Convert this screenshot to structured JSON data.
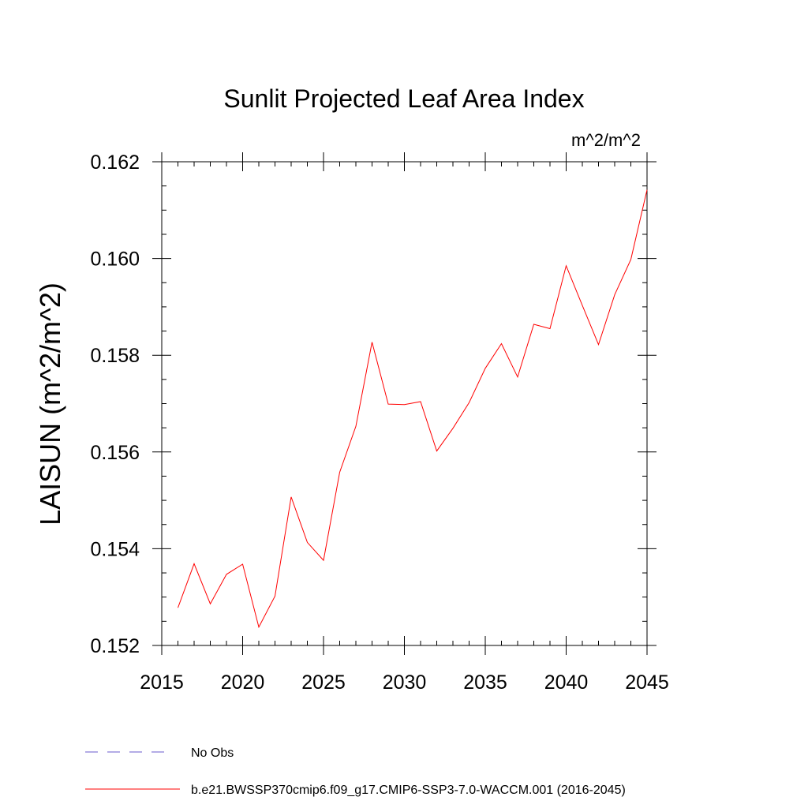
{
  "chart_data": {
    "type": "line",
    "title": "Sunlit Projected Leaf Area Index",
    "units_label": "m^2/m^2",
    "ylabel": "LAISUN  (m^2/m^2)",
    "xlabel": "",
    "xlim": [
      2015,
      2045
    ],
    "ylim": [
      0.152,
      0.162
    ],
    "x_ticks": [
      2015,
      2020,
      2025,
      2030,
      2035,
      2040,
      2045
    ],
    "x_tick_labels": [
      "2015",
      "2020",
      "2025",
      "2030",
      "2035",
      "2040",
      "2045"
    ],
    "y_ticks": [
      0.152,
      0.154,
      0.156,
      0.158,
      0.16,
      0.162
    ],
    "y_tick_labels": [
      "0.152",
      "0.154",
      "0.156",
      "0.158",
      "0.160",
      "0.162"
    ],
    "grid": false,
    "legend_position": "bottom",
    "series": [
      {
        "name": "b.e21.BWSSP370cmip6.f09_g17.CMIP6-SSP3-7.0-WACCM.001 (2016-2045)",
        "color": "#ff0000",
        "style": "solid",
        "x": [
          2016,
          2017,
          2018,
          2019,
          2020,
          2021,
          2022,
          2023,
          2024,
          2025,
          2026,
          2027,
          2028,
          2029,
          2030,
          2031,
          2032,
          2033,
          2034,
          2035,
          2036,
          2037,
          2038,
          2039,
          2040,
          2041,
          2042,
          2043,
          2044,
          2045
        ],
        "y": [
          0.15278,
          0.15369,
          0.15286,
          0.15347,
          0.15368,
          0.15238,
          0.15302,
          0.15507,
          0.15413,
          0.15376,
          0.15558,
          0.15653,
          0.15827,
          0.15699,
          0.15698,
          0.15704,
          0.15602,
          0.15649,
          0.15702,
          0.15773,
          0.15824,
          0.15755,
          0.15864,
          0.15855,
          0.15985,
          0.15903,
          0.15822,
          0.15925,
          0.15998,
          0.16142
        ]
      },
      {
        "name": "No Obs",
        "color": "#6a5acd",
        "style": "dashed",
        "x": [],
        "y": []
      }
    ]
  }
}
